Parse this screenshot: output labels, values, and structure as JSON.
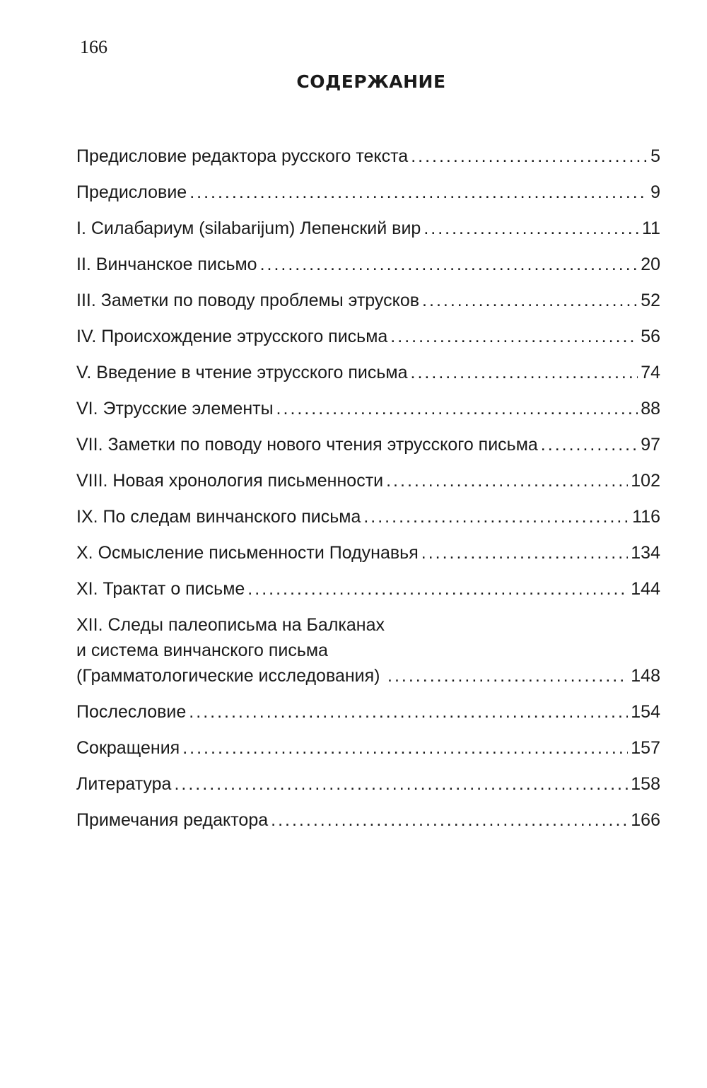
{
  "page_number": "166",
  "title": "СОДЕРЖАНИЕ",
  "entries": [
    {
      "text": "Предисловие редактора русского текста",
      "page": "5"
    },
    {
      "text": "Предисловие",
      "page": "9"
    },
    {
      "text": "I. Силабариум (silabarijum) Лепенский вир",
      "page": "11"
    },
    {
      "text": "II. Винчанское письмо",
      "page": "20"
    },
    {
      "text": "III. Заметки по поводу проблемы этрусков",
      "page": "52"
    },
    {
      "text": "IV. Происхождение этрусского письма",
      "page": "56"
    },
    {
      "text": "V. Введение в чтение этрусского письма",
      "page": "74"
    },
    {
      "text": "VI. Этрусские элементы",
      "page": "88"
    },
    {
      "text": "VII. Заметки по поводу нового чтения этрусского письма",
      "page": "97"
    },
    {
      "text": "VIII. Новая хронология письменности",
      "page": "102"
    },
    {
      "text": "IX. По следам винчанского письма",
      "page": "116"
    },
    {
      "text": "X. Осмысление письменности Подунавья",
      "page": "134"
    },
    {
      "text": "XI. Трактат о письме",
      "page": "144"
    },
    {
      "text": "XII. Следы палеописьма на Балканах\nи система винчанского письма\n(Грамматологические исследования)",
      "page": "148"
    },
    {
      "text": "Послесловие",
      "page": "154"
    },
    {
      "text": "Сокращения",
      "page": "157"
    },
    {
      "text": "Литература",
      "page": "158"
    },
    {
      "text": "Примечания редактора",
      "page": "166"
    }
  ]
}
